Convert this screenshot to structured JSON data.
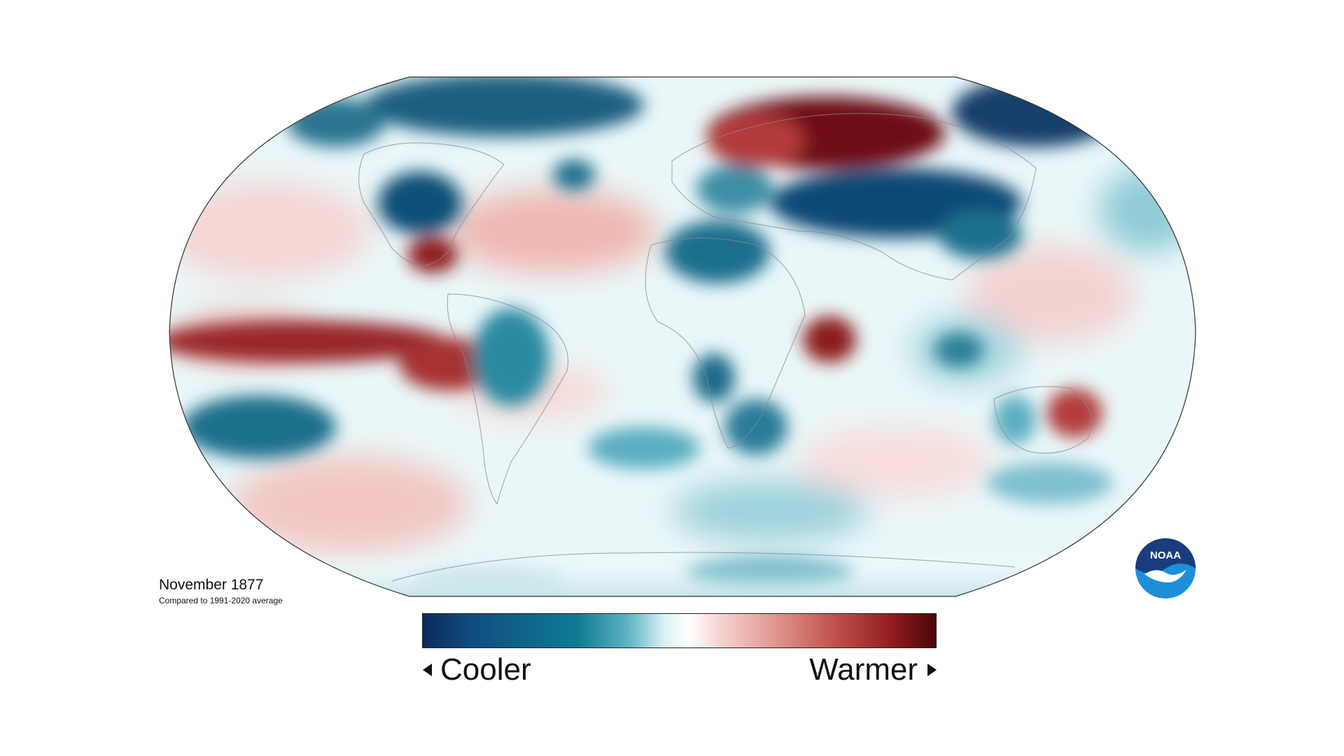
{
  "caption": {
    "title": "November 1877",
    "subtitle": "Compared to 1991-2020 average"
  },
  "legend": {
    "cooler_label": "Cooler",
    "warmer_label": "Warmer",
    "colors": [
      "#0d2a5c",
      "#0f4e80",
      "#0e7a92",
      "#5fb3c4",
      "#d9f1f5",
      "#ffffff",
      "#f7d2cf",
      "#e39a93",
      "#c0534d",
      "#8e1a1d",
      "#4a0508"
    ]
  },
  "logo": {
    "text": "NOAA",
    "icon": "noaa-logo-icon",
    "colors": {
      "top": "#1a3c7c",
      "bottom": "#1d8fd8",
      "bird": "#ffffff"
    }
  },
  "map": {
    "projection": "Robinson",
    "background": "#e8f6f8",
    "anomalies": [
      {
        "region": "Siberia / Northern Russia",
        "tone": "warmer"
      },
      {
        "region": "Central Asia",
        "tone": "cooler"
      },
      {
        "region": "Eastern Tropical Pacific",
        "tone": "warmer"
      },
      {
        "region": "Central North America",
        "tone": "cooler"
      },
      {
        "region": "Gulf of Mexico",
        "tone": "warmer"
      },
      {
        "region": "North Africa",
        "tone": "cooler"
      },
      {
        "region": "Western Indian Ocean",
        "tone": "warmer"
      },
      {
        "region": "Eastern Australia",
        "tone": "warmer"
      },
      {
        "region": "South Pacific",
        "tone": "cooler"
      },
      {
        "region": "Arctic Canada",
        "tone": "cooler"
      }
    ]
  }
}
